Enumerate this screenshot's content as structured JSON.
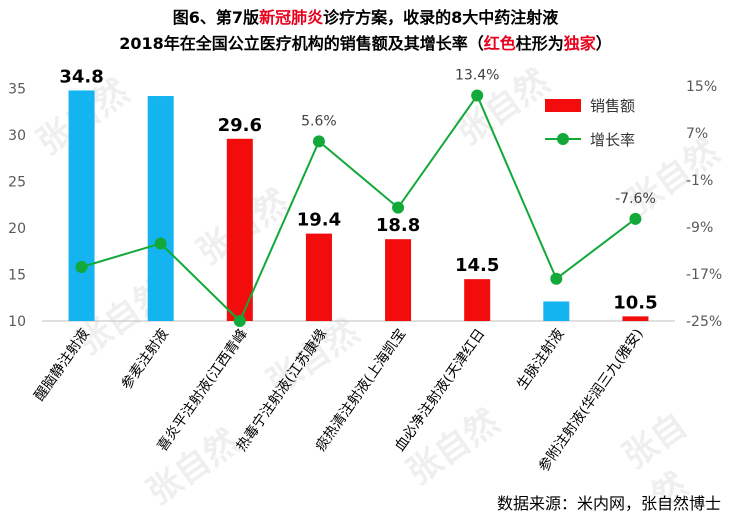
{
  "title": {
    "line1_pre": "图6、第7版",
    "line1_red": "新冠肺炎",
    "line1_post": "诊疗方案，收录的8大中药注射液",
    "line2_pre": "2018年在全国公立医疗机构的销售额及其增长率（",
    "line2_red1": "红色",
    "line2_mid": "柱形为",
    "line2_red2": "独家",
    "line2_post": "）"
  },
  "source": "数据来源：米内网，张自然博士",
  "watermark": "张自然",
  "colors": {
    "blue": "#14b4f0",
    "red": "#f20c0c",
    "green": "#12a83a",
    "axis": "#595959"
  },
  "chart_data": {
    "type": "bar",
    "categories": [
      "醒脑静注射液",
      "参麦注射液",
      "喜炎平注射液(江西青峰",
      "热毒宁注射液(江苏康缘",
      "痰热清注射液(上海凯宝",
      "血必净注射液(天津红日",
      "生脉注射液",
      "参附注射液(华润三九(雅安)"
    ],
    "series": [
      {
        "name": "销售额",
        "type": "bar",
        "axis": "left",
        "values": [
          34.8,
          34.2,
          29.6,
          19.4,
          18.8,
          14.5,
          12.1,
          10.5
        ],
        "colors": [
          "#14b4f0",
          "#14b4f0",
          "#f20c0c",
          "#f20c0c",
          "#f20c0c",
          "#f20c0c",
          "#14b4f0",
          "#f20c0c"
        ],
        "labels": [
          "34.8",
          "",
          "29.6",
          "19.4",
          "18.8",
          "14.5",
          "",
          "10.5"
        ]
      },
      {
        "name": "增长率",
        "type": "line",
        "axis": "right",
        "values": [
          -15.8,
          -11.8,
          -25.0,
          5.6,
          -5.7,
          13.4,
          -17.8,
          -7.6
        ],
        "labels": [
          "",
          "",
          "",
          "5.6%",
          "",
          "13.4%",
          "",
          "-7.6%"
        ]
      }
    ],
    "ylim": [
      10,
      37
    ],
    "yticks": [
      "10",
      "15",
      "20",
      "25",
      "30",
      "35"
    ],
    "y2lim": [
      -25,
      17.75
    ],
    "y2ticks": [
      "-25%",
      "-17%",
      "-9%",
      "-1%",
      "7%",
      "15%"
    ],
    "grid": false,
    "legend": "top-right"
  }
}
